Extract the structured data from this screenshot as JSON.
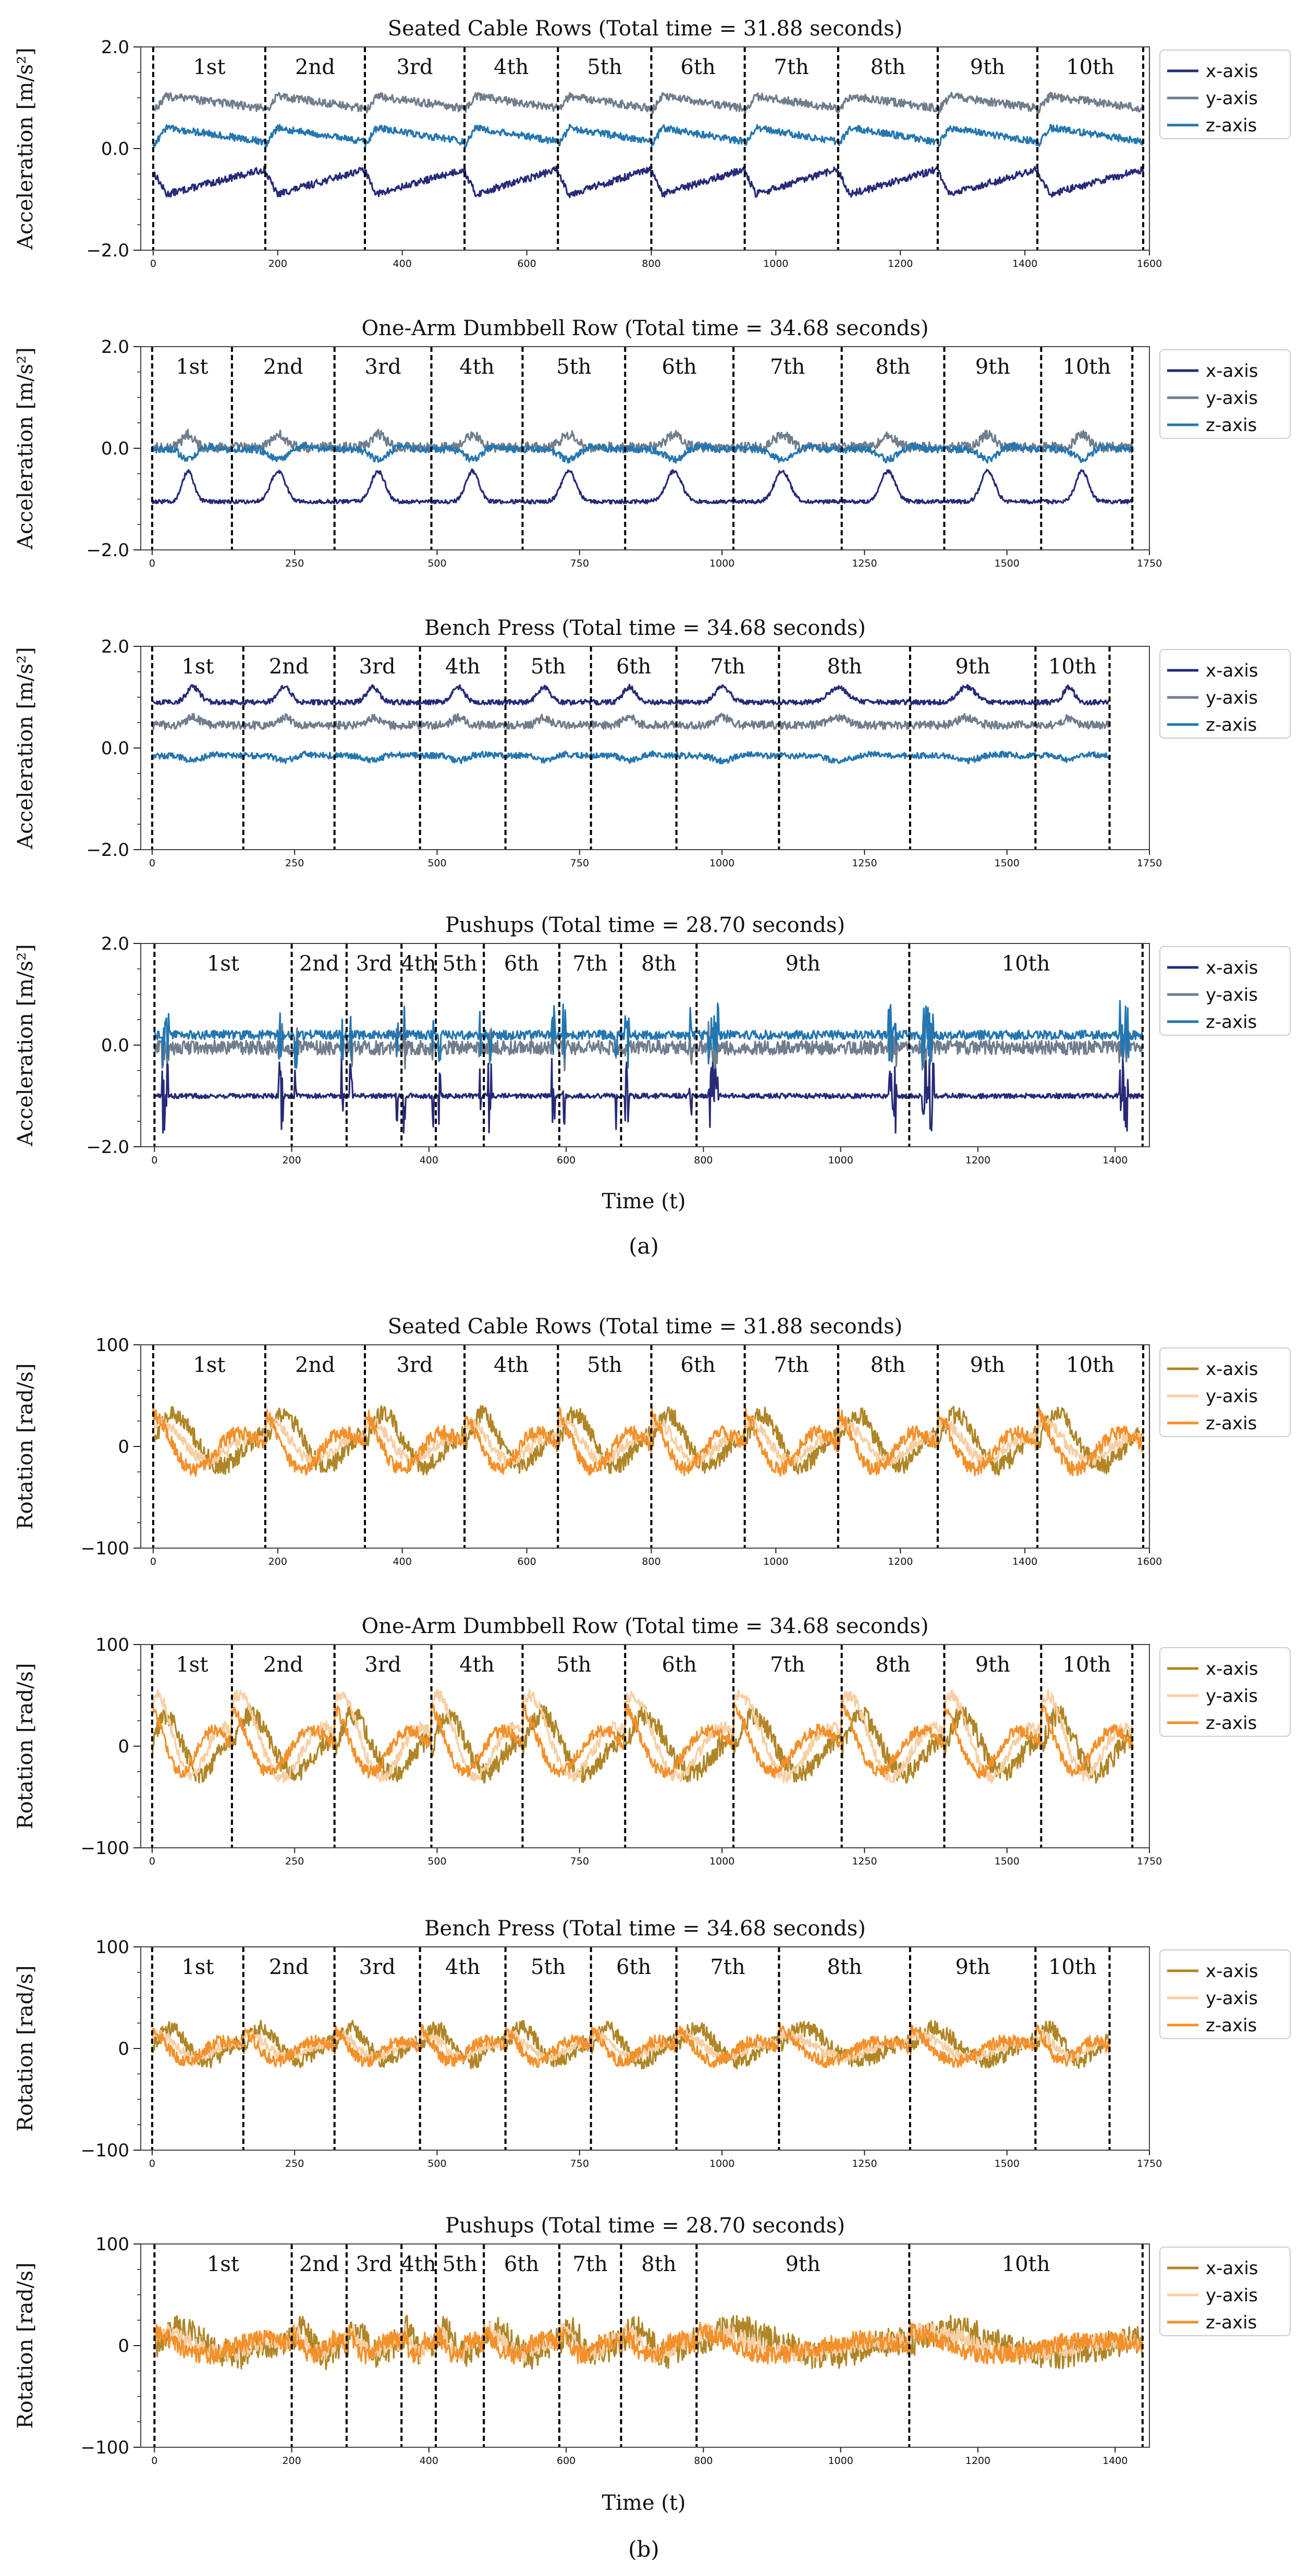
{
  "figure": {
    "part_a_label": "(a)",
    "part_b_label": "(b)",
    "xlabel_a": "Time (t)",
    "xlabel_b": "Time (t)"
  },
  "chart_data": [
    {
      "type": "line",
      "group": "a",
      "title": "Seated Cable Rows (Total time = 31.88 seconds)",
      "ylabel": "Acceleration [m/s²]",
      "xlim": [
        -20,
        1600
      ],
      "ylim": [
        -2.0,
        2.0
      ],
      "yticks": [
        2.0,
        0.0,
        -2.0
      ],
      "ytick_labels": [
        "2.0",
        "0.0",
        "−2.0"
      ],
      "xticks": [
        0,
        200,
        400,
        600,
        800,
        1000,
        1200,
        1400,
        1600
      ],
      "boundaries": [
        0,
        180,
        340,
        500,
        650,
        800,
        950,
        1100,
        1260,
        1420,
        1590
      ],
      "reps": [
        "1st",
        "2nd",
        "3rd",
        "4th",
        "5th",
        "6th",
        "7th",
        "8th",
        "9th",
        "10th"
      ],
      "series": [
        {
          "name": "x-axis",
          "color": "#262a78",
          "base": -0.45,
          "amp": 0.45,
          "shape": "drop",
          "noise": 0.07
        },
        {
          "name": "y-axis",
          "color": "#6f7d8c",
          "base": 0.85,
          "amp": 0.3,
          "shape": "rise",
          "noise": 0.08
        },
        {
          "name": "z-axis",
          "color": "#2476b0",
          "base": 0.2,
          "amp": 0.35,
          "shape": "rise",
          "noise": 0.07
        }
      ]
    },
    {
      "type": "line",
      "group": "a",
      "title": "One-Arm Dumbbell Row (Total time = 34.68 seconds)",
      "ylabel": "Acceleration [m/s²]",
      "xlim": [
        -20,
        1750
      ],
      "ylim": [
        -2.0,
        2.0
      ],
      "yticks": [
        2.0,
        0.0,
        -2.0
      ],
      "ytick_labels": [
        "2.0",
        "0.0",
        "−2.0"
      ],
      "xticks": [
        0,
        250,
        500,
        750,
        1000,
        1250,
        1500,
        1750
      ],
      "boundaries": [
        0,
        140,
        320,
        490,
        650,
        830,
        1020,
        1210,
        1390,
        1560,
        1720
      ],
      "reps": [
        "1st",
        "2nd",
        "3rd",
        "4th",
        "5th",
        "6th",
        "7th",
        "8th",
        "9th",
        "10th"
      ],
      "series": [
        {
          "name": "x-axis",
          "color": "#262a78",
          "base": -1.05,
          "amp": 0.6,
          "shape": "bump",
          "noise": 0.04
        },
        {
          "name": "y-axis",
          "color": "#6f7d8c",
          "base": 0.02,
          "amp": 0.25,
          "shape": "bump",
          "noise": 0.1
        },
        {
          "name": "z-axis",
          "color": "#2476b0",
          "base": -0.02,
          "amp": 0.2,
          "shape": "dip",
          "noise": 0.07
        }
      ]
    },
    {
      "type": "line",
      "group": "a",
      "title": "Bench Press (Total time = 34.68 seconds)",
      "ylabel": "Acceleration [m/s²]",
      "xlim": [
        -20,
        1750
      ],
      "ylim": [
        -2.0,
        2.0
      ],
      "yticks": [
        2.0,
        0.0,
        -2.0
      ],
      "ytick_labels": [
        "2.0",
        "0.0",
        "−2.0"
      ],
      "xticks": [
        0,
        250,
        500,
        750,
        1000,
        1250,
        1500,
        1750
      ],
      "boundaries": [
        0,
        160,
        320,
        470,
        620,
        770,
        920,
        1100,
        1330,
        1550,
        1680
      ],
      "reps": [
        "1st",
        "2nd",
        "3rd",
        "4th",
        "5th",
        "6th",
        "7th",
        "8th",
        "9th",
        "10th"
      ],
      "series": [
        {
          "name": "x-axis",
          "color": "#262a78",
          "base": 0.9,
          "amp": 0.3,
          "shape": "bump",
          "noise": 0.05
        },
        {
          "name": "y-axis",
          "color": "#6f7d8c",
          "base": 0.45,
          "amp": 0.15,
          "shape": "bump",
          "noise": 0.08
        },
        {
          "name": "z-axis",
          "color": "#2476b0",
          "base": -0.15,
          "amp": 0.1,
          "shape": "dip",
          "noise": 0.06
        }
      ]
    },
    {
      "type": "line",
      "group": "a",
      "title": "Pushups (Total time = 28.70 seconds)",
      "ylabel": "Acceleration [m/s²]",
      "xlim": [
        -20,
        1450
      ],
      "ylim": [
        -2.0,
        2.0
      ],
      "yticks": [
        2.0,
        0.0,
        -2.0
      ],
      "ytick_labels": [
        "2.0",
        "0.0",
        "−2.0"
      ],
      "xticks": [
        0,
        200,
        400,
        600,
        800,
        1000,
        1200,
        1400
      ],
      "boundaries": [
        0,
        200,
        280,
        360,
        410,
        480,
        590,
        680,
        790,
        1100,
        1440
      ],
      "reps": [
        "1st",
        "2nd",
        "3rd",
        "4th",
        "5th",
        "6th",
        "7th",
        "8th",
        "9th",
        "10th"
      ],
      "series": [
        {
          "name": "x-axis",
          "color": "#262a78",
          "base": -1.0,
          "amp": 0.6,
          "shape": "spike",
          "noise": 0.05
        },
        {
          "name": "y-axis",
          "color": "#6f7d8c",
          "base": -0.05,
          "amp": 0.3,
          "shape": "spike",
          "noise": 0.14
        },
        {
          "name": "z-axis",
          "color": "#2476b0",
          "base": 0.2,
          "amp": 0.5,
          "shape": "spike",
          "noise": 0.09
        }
      ]
    },
    {
      "type": "line",
      "group": "b",
      "title": "Seated Cable Rows (Total time = 31.88 seconds)",
      "ylabel": "Rotation [rad/s]",
      "xlim": [
        -20,
        1600
      ],
      "ylim": [
        -100,
        100
      ],
      "yticks": [
        100,
        0,
        -100
      ],
      "ytick_labels": [
        "100",
        "0",
        "−100"
      ],
      "xticks": [
        0,
        200,
        400,
        600,
        800,
        1000,
        1200,
        1400,
        1600
      ],
      "boundaries": [
        0,
        180,
        340,
        500,
        650,
        800,
        950,
        1100,
        1260,
        1420,
        1590
      ],
      "reps": [
        "1st",
        "2nd",
        "3rd",
        "4th",
        "5th",
        "6th",
        "7th",
        "8th",
        "9th",
        "10th"
      ],
      "series": [
        {
          "name": "x-axis",
          "color": "#b08526",
          "base": 0,
          "amp": 40,
          "shape": "osc",
          "noise": 9
        },
        {
          "name": "y-axis",
          "color": "#f8cea2",
          "base": 0,
          "amp": 25,
          "shape": "osc",
          "noise": 6
        },
        {
          "name": "z-axis",
          "color": "#f4902a",
          "base": 0,
          "amp": 35,
          "shape": "osc",
          "noise": 7
        }
      ]
    },
    {
      "type": "line",
      "group": "b",
      "title": "One-Arm Dumbbell Row (Total time = 34.68 seconds)",
      "ylabel": "Rotation [rad/s]",
      "xlim": [
        -20,
        1750
      ],
      "ylim": [
        -100,
        100
      ],
      "yticks": [
        100,
        0,
        -100
      ],
      "ytick_labels": [
        "100",
        "0",
        "−100"
      ],
      "xticks": [
        0,
        250,
        500,
        750,
        1000,
        1250,
        1500,
        1750
      ],
      "boundaries": [
        0,
        140,
        320,
        490,
        650,
        830,
        1020,
        1210,
        1390,
        1560,
        1720
      ],
      "reps": [
        "1st",
        "2nd",
        "3rd",
        "4th",
        "5th",
        "6th",
        "7th",
        "8th",
        "9th",
        "10th"
      ],
      "series": [
        {
          "name": "x-axis",
          "color": "#b08526",
          "base": -5,
          "amp": 45,
          "shape": "osc",
          "noise": 10
        },
        {
          "name": "y-axis",
          "color": "#f8cea2",
          "base": 0,
          "amp": 55,
          "shape": "osc",
          "noise": 6
        },
        {
          "name": "z-axis",
          "color": "#f4902a",
          "base": 0,
          "amp": 40,
          "shape": "osc",
          "noise": 6
        }
      ]
    },
    {
      "type": "line",
      "group": "b",
      "title": "Bench Press (Total time = 34.68 seconds)",
      "ylabel": "Rotation [rad/s]",
      "xlim": [
        -20,
        1750
      ],
      "ylim": [
        -100,
        100
      ],
      "yticks": [
        100,
        0,
        -100
      ],
      "ytick_labels": [
        "100",
        "0",
        "−100"
      ],
      "xticks": [
        0,
        250,
        500,
        750,
        1000,
        1250,
        1500,
        1750
      ],
      "boundaries": [
        0,
        160,
        320,
        470,
        620,
        770,
        920,
        1100,
        1330,
        1550,
        1680
      ],
      "reps": [
        "1st",
        "2nd",
        "3rd",
        "4th",
        "5th",
        "6th",
        "7th",
        "8th",
        "9th",
        "10th"
      ],
      "series": [
        {
          "name": "x-axis",
          "color": "#b08526",
          "base": 0,
          "amp": 25,
          "shape": "osc",
          "noise": 8
        },
        {
          "name": "y-axis",
          "color": "#f8cea2",
          "base": 0,
          "amp": 15,
          "shape": "osc",
          "noise": 5
        },
        {
          "name": "z-axis",
          "color": "#f4902a",
          "base": 0,
          "amp": 20,
          "shape": "osc",
          "noise": 6
        }
      ]
    },
    {
      "type": "line",
      "group": "b",
      "title": "Pushups (Total time = 28.70 seconds)",
      "ylabel": "Rotation [rad/s]",
      "xlim": [
        -20,
        1450
      ],
      "ylim": [
        -100,
        100
      ],
      "yticks": [
        100,
        0,
        -100
      ],
      "ytick_labels": [
        "100",
        "0",
        "−100"
      ],
      "xticks": [
        0,
        200,
        400,
        600,
        800,
        1000,
        1200,
        1400
      ],
      "boundaries": [
        0,
        200,
        280,
        360,
        410,
        480,
        590,
        680,
        790,
        1100,
        1440
      ],
      "reps": [
        "1st",
        "2nd",
        "3rd",
        "4th",
        "5th",
        "6th",
        "7th",
        "8th",
        "9th",
        "10th"
      ],
      "series": [
        {
          "name": "x-axis",
          "color": "#b08526",
          "base": 0,
          "amp": 20,
          "shape": "osc",
          "noise": 14
        },
        {
          "name": "y-axis",
          "color": "#f8cea2",
          "base": 0,
          "amp": 15,
          "shape": "osc",
          "noise": 9
        },
        {
          "name": "z-axis",
          "color": "#f4902a",
          "base": 0,
          "amp": 15,
          "shape": "osc",
          "noise": 9
        }
      ]
    }
  ]
}
